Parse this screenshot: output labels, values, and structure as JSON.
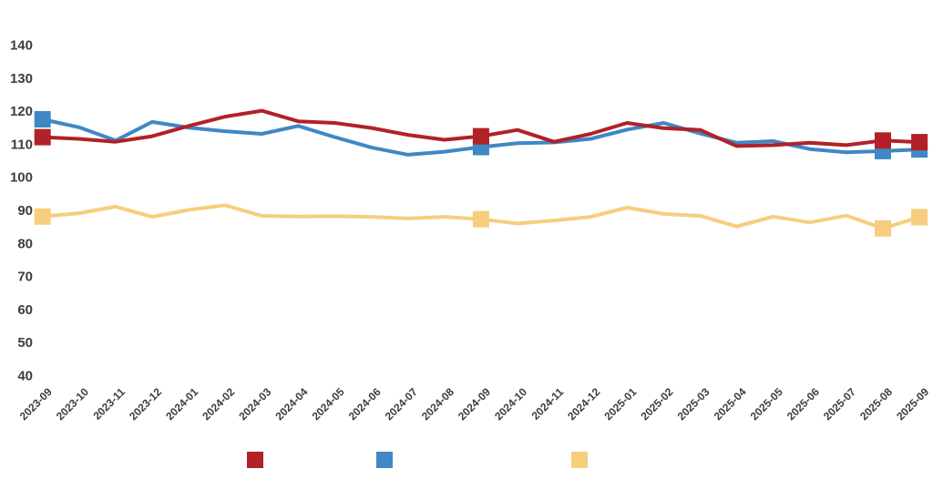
{
  "chart_data": {
    "type": "line",
    "title": "",
    "x_axis_label": "",
    "y_axis_label": "",
    "x": [
      "2023-09",
      "2023-10",
      "2023-11",
      "2023-12",
      "2024-01",
      "2024-02",
      "2024-03",
      "2024-04",
      "2024-05",
      "2024-06",
      "2024-07",
      "2024-08",
      "2024-09",
      "2024-10",
      "2024-11",
      "2024-12",
      "2025-01",
      "2025-02",
      "2025-03",
      "2025-04",
      "2025-05",
      "2025-06",
      "2025-07",
      "2025-08",
      "2025-09"
    ],
    "series": [
      {
        "name": "series-red",
        "color": "#b22127",
        "values": [
          112.0,
          111.5,
          110.6,
          112.3,
          115.4,
          118.2,
          120.0,
          116.8,
          116.3,
          114.8,
          112.7,
          111.2,
          112.3,
          114.2,
          110.6,
          113.0,
          116.3,
          114.7,
          114.2,
          109.3,
          109.6,
          110.3,
          109.6,
          111.0,
          110.5
        ],
        "marker_indices": [
          0,
          12,
          23,
          24
        ]
      },
      {
        "name": "series-blue",
        "color": "#3f87c5",
        "values": [
          117.4,
          115.0,
          111.0,
          116.6,
          114.9,
          113.8,
          113.0,
          115.4,
          112.0,
          108.9,
          106.7,
          107.6,
          109.0,
          110.2,
          110.4,
          111.5,
          114.3,
          116.3,
          113.1,
          110.3,
          110.8,
          108.4,
          107.4,
          107.8,
          108.3
        ],
        "marker_indices": [
          0,
          12,
          23,
          24
        ]
      },
      {
        "name": "series-yellow",
        "color": "#f6ce7d",
        "values": [
          88.0,
          89.0,
          91.0,
          87.9,
          90.0,
          91.4,
          88.2,
          88.0,
          88.1,
          87.9,
          87.4,
          87.9,
          87.2,
          85.9,
          86.8,
          87.9,
          90.7,
          88.8,
          88.2,
          85.0,
          88.0,
          86.2,
          88.3,
          84.4,
          87.8
        ],
        "marker_indices": [
          0,
          12,
          23,
          24
        ]
      }
    ],
    "yticks": [
      40,
      50,
      60,
      70,
      80,
      90,
      100,
      110,
      120,
      130,
      140
    ],
    "ylim": [
      40,
      140
    ],
    "grid": false,
    "axis_lines": false,
    "tick_text_color": "#3d3d3d",
    "legend_position": "bottom",
    "legend": {
      "items": [
        {
          "label": "",
          "series": "series-red"
        },
        {
          "label": "",
          "series": "series-blue"
        },
        {
          "label": "",
          "series": "series-yellow"
        }
      ]
    }
  }
}
